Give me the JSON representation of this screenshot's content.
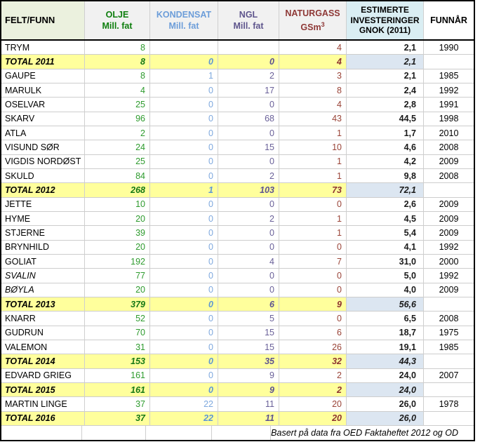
{
  "header": {
    "columns": [
      {
        "id": "felt-funn",
        "line1": "FELT/FUNN"
      },
      {
        "id": "olje",
        "line1": "OLJE",
        "line2": "Mill. fat",
        "color": "#0e7e0e"
      },
      {
        "id": "kondensat",
        "line1": "KONDENSAT",
        "line2": "Mill. fat",
        "color": "#6c9dd9"
      },
      {
        "id": "ngl",
        "line1": "NGL",
        "line2": "Mill. fat",
        "color": "#5f568d"
      },
      {
        "id": "naturgass",
        "line1": "NATURGASS",
        "line2": "GSm",
        "sup": "3",
        "color": "#8e3836"
      },
      {
        "id": "investeringer",
        "line1": "ESTIMERTE",
        "line2": "INVESTERINGER",
        "line3": "GNOK (2011)",
        "bg": "#daeef3"
      },
      {
        "id": "funnaar",
        "line1": "FUNNÅR"
      }
    ]
  },
  "rows": [
    {
      "type": "field",
      "name": "TRYM",
      "olje": "8",
      "kondensat": "",
      "ngl": "",
      "naturgass": "4",
      "inv": "2,1",
      "year": "1990"
    },
    {
      "type": "total",
      "name": "TOTAL 2011",
      "olje": "8",
      "kondensat": "0",
      "ngl": "0",
      "naturgass": "4",
      "inv": "2,1",
      "year": ""
    },
    {
      "type": "field",
      "name": "GAUPE",
      "olje": "8",
      "kondensat": "1",
      "ngl": "2",
      "naturgass": "3",
      "inv": "2,1",
      "year": "1985"
    },
    {
      "type": "field",
      "name": "MARULK",
      "olje": "4",
      "kondensat": "0",
      "ngl": "17",
      "naturgass": "8",
      "inv": "2,4",
      "year": "1992"
    },
    {
      "type": "field",
      "name": "OSELVAR",
      "olje": "25",
      "kondensat": "0",
      "ngl": "0",
      "naturgass": "4",
      "inv": "2,8",
      "year": "1991"
    },
    {
      "type": "field",
      "name": "SKARV",
      "olje": "96",
      "kondensat": "0",
      "ngl": "68",
      "naturgass": "43",
      "inv": "44,5",
      "year": "1998"
    },
    {
      "type": "field",
      "name": "ATLA",
      "olje": "2",
      "kondensat": "0",
      "ngl": "0",
      "naturgass": "1",
      "inv": "1,7",
      "year": "2010"
    },
    {
      "type": "field",
      "name": "VISUND SØR",
      "olje": "24",
      "kondensat": "0",
      "ngl": "15",
      "naturgass": "10",
      "inv": "4,6",
      "year": "2008"
    },
    {
      "type": "field",
      "name": "VIGDIS NORDØST",
      "olje": "25",
      "kondensat": "0",
      "ngl": "0",
      "naturgass": "1",
      "inv": "4,2",
      "year": "2009"
    },
    {
      "type": "field",
      "name": "SKULD",
      "olje": "84",
      "kondensat": "0",
      "ngl": "2",
      "naturgass": "1",
      "inv": "9,8",
      "year": "2008"
    },
    {
      "type": "total",
      "name": "TOTAL 2012",
      "olje": "268",
      "kondensat": "1",
      "ngl": "103",
      "naturgass": "73",
      "inv": "72,1",
      "year": ""
    },
    {
      "type": "field",
      "name": "JETTE",
      "olje": "10",
      "kondensat": "0",
      "ngl": "0",
      "naturgass": "0",
      "inv": "2,6",
      "year": "2009"
    },
    {
      "type": "field",
      "name": "HYME",
      "olje": "20",
      "kondensat": "0",
      "ngl": "2",
      "naturgass": "1",
      "inv": "4,5",
      "year": "2009"
    },
    {
      "type": "field",
      "name": "STJERNE",
      "olje": "39",
      "kondensat": "0",
      "ngl": "0",
      "naturgass": "1",
      "inv": "5,4",
      "year": "2009"
    },
    {
      "type": "field",
      "name": "BRYNHILD",
      "olje": "20",
      "kondensat": "0",
      "ngl": "0",
      "naturgass": "0",
      "inv": "4,1",
      "year": "1992"
    },
    {
      "type": "field",
      "name": "GOLIAT",
      "olje": "192",
      "kondensat": "0",
      "ngl": "4",
      "naturgass": "7",
      "inv": "31,0",
      "year": "2000"
    },
    {
      "type": "field-italic",
      "name": "SVALIN",
      "olje": "77",
      "kondensat": "0",
      "ngl": "0",
      "naturgass": "0",
      "inv": "5,0",
      "year": "1992"
    },
    {
      "type": "field-italic",
      "name": "BØYLA",
      "olje": "20",
      "kondensat": "0",
      "ngl": "0",
      "naturgass": "0",
      "inv": "4,0",
      "year": "2009"
    },
    {
      "type": "total",
      "name": "TOTAL 2013",
      "olje": "379",
      "kondensat": "0",
      "ngl": "6",
      "naturgass": "9",
      "inv": "56,6",
      "year": ""
    },
    {
      "type": "field",
      "name": "KNARR",
      "olje": "52",
      "kondensat": "0",
      "ngl": "5",
      "naturgass": "0",
      "inv": "6,5",
      "year": "2008"
    },
    {
      "type": "field",
      "name": "GUDRUN",
      "olje": "70",
      "kondensat": "0",
      "ngl": "15",
      "naturgass": "6",
      "inv": "18,7",
      "year": "1975"
    },
    {
      "type": "field",
      "name": "VALEMON",
      "olje": "31",
      "kondensat": "0",
      "ngl": "15",
      "naturgass": "26",
      "inv": "19,1",
      "year": "1985"
    },
    {
      "type": "total",
      "name": "TOTAL 2014",
      "olje": "153",
      "kondensat": "0",
      "ngl": "35",
      "naturgass": "32",
      "inv": "44,3",
      "year": ""
    },
    {
      "type": "field",
      "name": "EDVARD GRIEG",
      "olje": "161",
      "kondensat": "0",
      "ngl": "9",
      "naturgass": "2",
      "inv": "24,0",
      "year": "2007"
    },
    {
      "type": "total",
      "name": "TOTAL 2015",
      "olje": "161",
      "kondensat": "0",
      "ngl": "9",
      "naturgass": "2",
      "inv": "24,0",
      "year": ""
    },
    {
      "type": "field",
      "name": "MARTIN LINGE",
      "olje": "37",
      "kondensat": "22",
      "ngl": "11",
      "naturgass": "20",
      "inv": "26,0",
      "year": "1978"
    },
    {
      "type": "total",
      "name": "TOTAL 2016",
      "olje": "37",
      "kondensat": "22",
      "ngl": "11",
      "naturgass": "20",
      "inv": "26,0",
      "year": ""
    }
  ],
  "footer": {
    "note": "Basert på data fra OED Faktaheftet 2012 og OD"
  },
  "colors": {
    "olje_text": "#0e7e0e",
    "kondensat_text": "#6c9dd9",
    "ngl_text": "#5f568d",
    "naturgass_text": "#8e3836",
    "total_row_bg": "#ffff9c",
    "investeringer_header_bg": "#daeef3",
    "investeringer_total_bg": "#dce6f1",
    "felt_funn_header_bg": "#ebf1de",
    "header_gray_bg": "#f1f1f1",
    "gridline": "#cfcfcf",
    "outer_border": "#000000"
  },
  "chart_data": {
    "type": "table",
    "title": "Felt/funn – ressurser og estimerte investeringer",
    "columns": [
      "FELT/FUNN",
      "OLJE Mill. fat",
      "KONDENSAT Mill. fat",
      "NGL Mill. fat",
      "NATURGASS GSm3",
      "ESTIMERTE INVESTERINGER GNOK (2011)",
      "FUNNÅR"
    ],
    "rows": [
      [
        "TRYM",
        8,
        null,
        null,
        4,
        "2,1",
        1990
      ],
      [
        "TOTAL 2011",
        8,
        0,
        0,
        4,
        "2,1",
        null
      ],
      [
        "GAUPE",
        8,
        1,
        2,
        3,
        "2,1",
        1985
      ],
      [
        "MARULK",
        4,
        0,
        17,
        8,
        "2,4",
        1992
      ],
      [
        "OSELVAR",
        25,
        0,
        0,
        4,
        "2,8",
        1991
      ],
      [
        "SKARV",
        96,
        0,
        68,
        43,
        "44,5",
        1998
      ],
      [
        "ATLA",
        2,
        0,
        0,
        1,
        "1,7",
        2010
      ],
      [
        "VISUND SØR",
        24,
        0,
        15,
        10,
        "4,6",
        2008
      ],
      [
        "VIGDIS NORDØST",
        25,
        0,
        0,
        1,
        "4,2",
        2009
      ],
      [
        "SKULD",
        84,
        0,
        2,
        1,
        "9,8",
        2008
      ],
      [
        "TOTAL 2012",
        268,
        1,
        103,
        73,
        "72,1",
        null
      ],
      [
        "JETTE",
        10,
        0,
        0,
        0,
        "2,6",
        2009
      ],
      [
        "HYME",
        20,
        0,
        2,
        1,
        "4,5",
        2009
      ],
      [
        "STJERNE",
        39,
        0,
        0,
        1,
        "5,4",
        2009
      ],
      [
        "BRYNHILD",
        20,
        0,
        0,
        0,
        "4,1",
        1992
      ],
      [
        "GOLIAT",
        192,
        0,
        4,
        7,
        "31,0",
        2000
      ],
      [
        "SVALIN",
        77,
        0,
        0,
        0,
        "5,0",
        1992
      ],
      [
        "BØYLA",
        20,
        0,
        0,
        0,
        "4,0",
        2009
      ],
      [
        "TOTAL 2013",
        379,
        0,
        6,
        9,
        "56,6",
        null
      ],
      [
        "KNARR",
        52,
        0,
        5,
        0,
        "6,5",
        2008
      ],
      [
        "GUDRUN",
        70,
        0,
        15,
        6,
        "18,7",
        1975
      ],
      [
        "VALEMON",
        31,
        0,
        15,
        26,
        "19,1",
        1985
      ],
      [
        "TOTAL 2014",
        153,
        0,
        35,
        32,
        "44,3",
        null
      ],
      [
        "EDVARD GRIEG",
        161,
        0,
        9,
        2,
        "24,0",
        2007
      ],
      [
        "TOTAL 2015",
        161,
        0,
        9,
        2,
        "24,0",
        null
      ],
      [
        "MARTIN LINGE",
        37,
        22,
        11,
        20,
        "26,0",
        1978
      ],
      [
        "TOTAL 2016",
        37,
        22,
        11,
        20,
        "26,0",
        null
      ]
    ],
    "source_note": "Basert på data fra OED Faktaheftet 2012 og OD"
  }
}
